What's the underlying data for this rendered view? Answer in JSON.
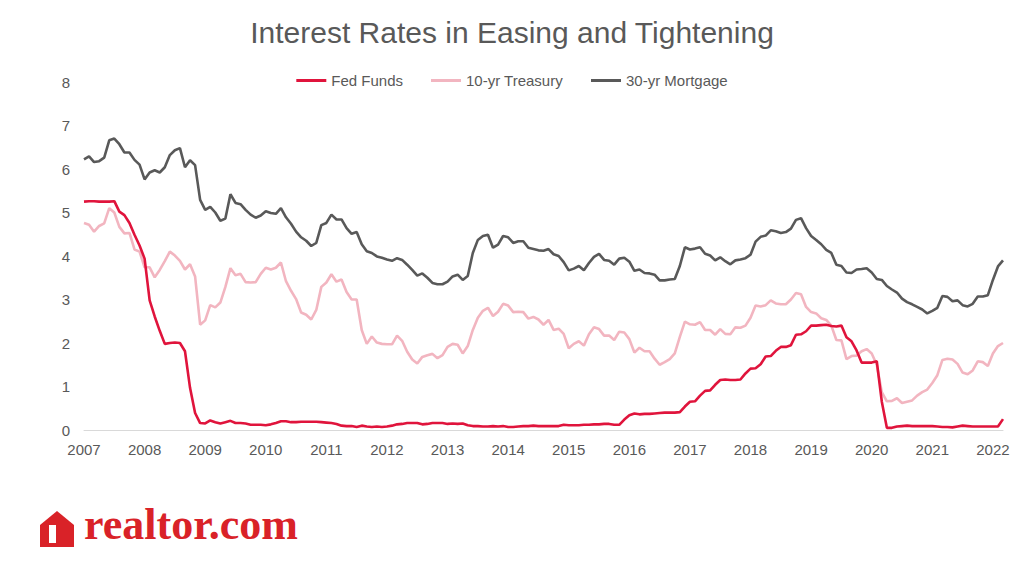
{
  "chart_data": {
    "type": "line",
    "title": "Interest Rates in Easing and Tightening",
    "annotations": [
      "realtor.com"
    ],
    "categories": [
      "2007",
      null,
      null,
      null,
      null,
      null,
      null,
      null,
      null,
      null,
      null,
      null,
      "2008",
      null,
      null,
      null,
      null,
      null,
      null,
      null,
      null,
      null,
      null,
      null,
      "2009",
      null,
      null,
      null,
      null,
      null,
      null,
      null,
      null,
      null,
      null,
      null,
      "2010",
      null,
      null,
      null,
      null,
      null,
      null,
      null,
      null,
      null,
      null,
      null,
      "2011",
      null,
      null,
      null,
      null,
      null,
      null,
      null,
      null,
      null,
      null,
      null,
      "2012",
      null,
      null,
      null,
      null,
      null,
      null,
      null,
      null,
      null,
      null,
      null,
      "2013",
      null,
      null,
      null,
      null,
      null,
      null,
      null,
      null,
      null,
      null,
      null,
      "2014",
      null,
      null,
      null,
      null,
      null,
      null,
      null,
      null,
      null,
      null,
      null,
      "2015",
      null,
      null,
      null,
      null,
      null,
      null,
      null,
      null,
      null,
      null,
      null,
      "2016",
      null,
      null,
      null,
      null,
      null,
      null,
      null,
      null,
      null,
      null,
      null,
      "2017",
      null,
      null,
      null,
      null,
      null,
      null,
      null,
      null,
      null,
      null,
      null,
      "2018",
      null,
      null,
      null,
      null,
      null,
      null,
      null,
      null,
      null,
      null,
      null,
      "2019",
      null,
      null,
      null,
      null,
      null,
      null,
      null,
      null,
      null,
      null,
      null,
      "2020",
      null,
      null,
      null,
      null,
      null,
      null,
      null,
      null,
      null,
      null,
      null,
      "2021",
      null,
      null,
      null,
      null,
      null,
      null,
      null,
      null,
      null,
      null,
      null,
      "2022",
      null,
      null
    ],
    "series": [
      {
        "name": "Fed Funds",
        "color": "#e0143c",
        "values": [
          5.25,
          5.26,
          5.26,
          5.25,
          5.25,
          5.25,
          5.26,
          5.02,
          4.94,
          4.76,
          4.49,
          4.24,
          3.94,
          2.98,
          2.61,
          2.28,
          1.98,
          2.0,
          2.01,
          2.0,
          1.81,
          0.97,
          0.39,
          0.16,
          0.15,
          0.22,
          0.18,
          0.15,
          0.18,
          0.21,
          0.16,
          0.16,
          0.15,
          0.12,
          0.12,
          0.12,
          0.11,
          0.13,
          0.16,
          0.2,
          0.2,
          0.18,
          0.18,
          0.19,
          0.19,
          0.19,
          0.19,
          0.18,
          0.17,
          0.16,
          0.14,
          0.1,
          0.09,
          0.09,
          0.07,
          0.1,
          0.08,
          0.07,
          0.08,
          0.07,
          0.08,
          0.1,
          0.13,
          0.14,
          0.16,
          0.16,
          0.16,
          0.13,
          0.14,
          0.16,
          0.16,
          0.16,
          0.14,
          0.15,
          0.14,
          0.15,
          0.11,
          0.09,
          0.09,
          0.08,
          0.08,
          0.09,
          0.08,
          0.09,
          0.07,
          0.07,
          0.08,
          0.09,
          0.09,
          0.1,
          0.09,
          0.09,
          0.09,
          0.09,
          0.09,
          0.12,
          0.11,
          0.11,
          0.11,
          0.12,
          0.12,
          0.13,
          0.13,
          0.14,
          0.14,
          0.12,
          0.12,
          0.24,
          0.34,
          0.38,
          0.36,
          0.37,
          0.37,
          0.38,
          0.39,
          0.4,
          0.4,
          0.4,
          0.41,
          0.54,
          0.65,
          0.66,
          0.79,
          0.9,
          0.91,
          1.04,
          1.15,
          1.16,
          1.15,
          1.15,
          1.16,
          1.3,
          1.41,
          1.42,
          1.51,
          1.69,
          1.7,
          1.82,
          1.91,
          1.91,
          1.95,
          2.19,
          2.2,
          2.27,
          2.4,
          2.4,
          2.41,
          2.42,
          2.39,
          2.38,
          2.4,
          2.13,
          2.04,
          1.83,
          1.55,
          1.55,
          1.55,
          1.58,
          0.65,
          0.05,
          0.05,
          0.08,
          0.09,
          0.1,
          0.09,
          0.09,
          0.09,
          0.09,
          0.09,
          0.08,
          0.07,
          0.07,
          0.06,
          0.08,
          0.1,
          0.09,
          0.08,
          0.08,
          0.08,
          0.08,
          0.08,
          0.08,
          0.25
        ]
      },
      {
        "name": "10-yr Treasury",
        "color": "#f2b5c0",
        "values": [
          4.76,
          4.72,
          4.56,
          4.69,
          4.75,
          5.1,
          5.0,
          4.67,
          4.52,
          4.53,
          4.15,
          4.1,
          3.74,
          3.74,
          3.51,
          3.68,
          3.88,
          4.1,
          4.01,
          3.89,
          3.69,
          3.81,
          3.53,
          2.42,
          2.52,
          2.87,
          2.82,
          2.93,
          3.29,
          3.72,
          3.56,
          3.59,
          3.4,
          3.39,
          3.4,
          3.59,
          3.73,
          3.69,
          3.73,
          3.85,
          3.42,
          3.2,
          3.01,
          2.7,
          2.65,
          2.54,
          2.76,
          3.29,
          3.39,
          3.58,
          3.41,
          3.46,
          3.17,
          3.0,
          3.0,
          2.3,
          1.98,
          2.15,
          2.01,
          1.98,
          1.97,
          1.97,
          2.17,
          2.05,
          1.8,
          1.62,
          1.53,
          1.68,
          1.72,
          1.75,
          1.65,
          1.72,
          1.91,
          1.98,
          1.96,
          1.76,
          1.93,
          2.3,
          2.58,
          2.74,
          2.81,
          2.62,
          2.72,
          2.9,
          2.86,
          2.71,
          2.72,
          2.71,
          2.56,
          2.6,
          2.54,
          2.42,
          2.53,
          2.3,
          2.33,
          2.21,
          1.88,
          1.98,
          2.04,
          1.94,
          2.2,
          2.36,
          2.32,
          2.17,
          2.17,
          2.07,
          2.26,
          2.24,
          2.09,
          1.78,
          1.89,
          1.81,
          1.81,
          1.64,
          1.5,
          1.56,
          1.63,
          1.76,
          2.14,
          2.49,
          2.43,
          2.42,
          2.48,
          2.3,
          2.3,
          2.19,
          2.32,
          2.21,
          2.2,
          2.36,
          2.35,
          2.4,
          2.58,
          2.86,
          2.84,
          2.87,
          2.98,
          2.91,
          2.89,
          2.89,
          3.0,
          3.15,
          3.12,
          2.83,
          2.71,
          2.68,
          2.57,
          2.53,
          2.4,
          2.07,
          2.06,
          1.63,
          1.7,
          1.71,
          1.81,
          1.86,
          1.76,
          1.5,
          0.87,
          0.66,
          0.67,
          0.73,
          0.62,
          0.65,
          0.68,
          0.79,
          0.87,
          0.93,
          1.08,
          1.26,
          1.61,
          1.64,
          1.62,
          1.52,
          1.32,
          1.28,
          1.37,
          1.58,
          1.56,
          1.47,
          1.76,
          1.93,
          2.0
        ]
      },
      {
        "name": "30-yr Mortgage",
        "color": "#595959",
        "values": [
          6.22,
          6.29,
          6.16,
          6.18,
          6.26,
          6.66,
          6.7,
          6.57,
          6.38,
          6.38,
          6.21,
          6.1,
          5.76,
          5.92,
          5.97,
          5.92,
          6.04,
          6.32,
          6.43,
          6.48,
          6.04,
          6.2,
          6.09,
          5.29,
          5.06,
          5.13,
          5.0,
          4.81,
          4.86,
          5.42,
          5.22,
          5.19,
          5.06,
          4.95,
          4.88,
          4.93,
          5.03,
          4.99,
          4.97,
          5.1,
          4.89,
          4.74,
          4.56,
          4.43,
          4.35,
          4.23,
          4.3,
          4.71,
          4.76,
          4.95,
          4.84,
          4.84,
          4.64,
          4.51,
          4.55,
          4.27,
          4.11,
          4.07,
          3.99,
          3.96,
          3.92,
          3.89,
          3.95,
          3.91,
          3.8,
          3.68,
          3.55,
          3.6,
          3.5,
          3.38,
          3.35,
          3.35,
          3.41,
          3.53,
          3.57,
          3.45,
          3.54,
          4.07,
          4.37,
          4.46,
          4.49,
          4.19,
          4.26,
          4.46,
          4.43,
          4.3,
          4.34,
          4.34,
          4.19,
          4.16,
          4.13,
          4.12,
          4.16,
          4.04,
          4.0,
          3.86,
          3.67,
          3.71,
          3.77,
          3.67,
          3.84,
          3.98,
          4.05,
          3.91,
          3.89,
          3.8,
          3.94,
          3.96,
          3.87,
          3.66,
          3.69,
          3.61,
          3.6,
          3.57,
          3.44,
          3.44,
          3.46,
          3.47,
          3.77,
          4.2,
          4.15,
          4.17,
          4.2,
          4.05,
          4.01,
          3.9,
          3.97,
          3.88,
          3.81,
          3.9,
          3.92,
          3.95,
          4.03,
          4.33,
          4.44,
          4.47,
          4.59,
          4.57,
          4.53,
          4.55,
          4.63,
          4.83,
          4.87,
          4.64,
          4.46,
          4.37,
          4.27,
          4.14,
          4.07,
          3.8,
          3.77,
          3.62,
          3.61,
          3.69,
          3.7,
          3.72,
          3.62,
          3.47,
          3.45,
          3.31,
          3.23,
          3.16,
          3.02,
          2.94,
          2.89,
          2.83,
          2.77,
          2.68,
          2.74,
          2.81,
          3.08,
          3.06,
          2.96,
          2.98,
          2.87,
          2.84,
          2.9,
          3.07,
          3.07,
          3.1,
          3.45,
          3.76,
          3.9
        ]
      }
    ],
    "ylim": [
      0,
      8
    ],
    "yticks": [
      0,
      1,
      2,
      3,
      4,
      5,
      6,
      7,
      8
    ],
    "grid": false,
    "legend": "top"
  }
}
